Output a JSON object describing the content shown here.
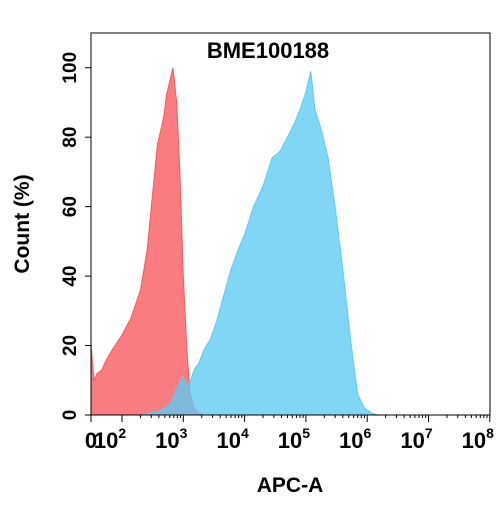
{
  "chart_data": {
    "type": "area",
    "title": "BME100188",
    "xlabel": "APC-A",
    "ylabel": "Count (%)",
    "x_scale": "biexponential",
    "xlim": [
      0,
      100000000
    ],
    "ylim": [
      0,
      110
    ],
    "y_ticks": [
      0,
      20,
      40,
      60,
      80,
      100
    ],
    "x_ticks": [
      {
        "value": 0,
        "label": "0",
        "exp": ""
      },
      {
        "value": 100,
        "label": "10",
        "exp": "2"
      },
      {
        "value": 1000,
        "label": "10",
        "exp": "3"
      },
      {
        "value": 10000,
        "label": "10",
        "exp": "4"
      },
      {
        "value": 100000,
        "label": "10",
        "exp": "5"
      },
      {
        "value": 1000000,
        "label": "10",
        "exp": "6"
      },
      {
        "value": 10000000,
        "label": "10",
        "exp": "7"
      },
      {
        "value": 100000000,
        "label": "10",
        "exp": "8"
      }
    ],
    "grid": false,
    "legend": "none",
    "series": [
      {
        "color": "#f7585c",
        "points": [
          [
            0,
            21
          ],
          [
            5,
            15
          ],
          [
            10,
            10
          ],
          [
            20,
            12
          ],
          [
            35,
            13
          ],
          [
            50,
            16
          ],
          [
            70,
            19
          ],
          [
            100,
            23
          ],
          [
            140,
            28
          ],
          [
            200,
            36
          ],
          [
            260,
            48
          ],
          [
            320,
            65
          ],
          [
            380,
            78
          ],
          [
            430,
            82
          ],
          [
            480,
            86
          ],
          [
            530,
            92
          ],
          [
            600,
            96
          ],
          [
            680,
            100
          ],
          [
            780,
            90
          ],
          [
            880,
            70
          ],
          [
            1000,
            40
          ],
          [
            1150,
            18
          ],
          [
            1300,
            6
          ],
          [
            1500,
            2
          ],
          [
            1800,
            0.5
          ],
          [
            2200,
            0
          ]
        ]
      },
      {
        "color": "#5ecbf4",
        "points": [
          [
            200,
            0
          ],
          [
            400,
            1
          ],
          [
            600,
            3
          ],
          [
            800,
            8
          ],
          [
            1000,
            11
          ],
          [
            1200,
            8
          ],
          [
            1500,
            13
          ],
          [
            1800,
            15
          ],
          [
            2200,
            19
          ],
          [
            2800,
            22
          ],
          [
            3500,
            27
          ],
          [
            4500,
            34
          ],
          [
            6000,
            42
          ],
          [
            8000,
            48
          ],
          [
            10000,
            52
          ],
          [
            14000,
            60
          ],
          [
            20000,
            66
          ],
          [
            28000,
            74
          ],
          [
            38000,
            76
          ],
          [
            50000,
            80
          ],
          [
            65000,
            84
          ],
          [
            80000,
            88
          ],
          [
            100000,
            93
          ],
          [
            120000,
            99
          ],
          [
            140000,
            88
          ],
          [
            180000,
            82
          ],
          [
            230000,
            74
          ],
          [
            300000,
            60
          ],
          [
            400000,
            42
          ],
          [
            550000,
            20
          ],
          [
            700000,
            6
          ],
          [
            900000,
            2
          ],
          [
            1200000,
            0.5
          ],
          [
            1500000,
            0
          ]
        ]
      }
    ]
  }
}
